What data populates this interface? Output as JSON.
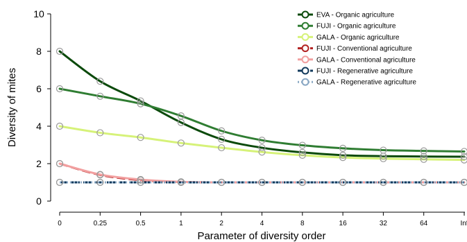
{
  "chart_data": {
    "type": "line",
    "title": "",
    "xlabel": "Parameter of diversity order",
    "ylabel": "Diversity of mites",
    "x": [
      "0",
      "0.25",
      "0.5",
      "1",
      "2",
      "4",
      "8",
      "16",
      "32",
      "64",
      "Inf"
    ],
    "ylim": [
      0,
      10
    ],
    "yticks": [
      "0",
      "2",
      "4",
      "6",
      "8",
      "10"
    ],
    "grid": false,
    "legend_position": "top-right",
    "series": [
      {
        "name": "EVA - Organic agriculture",
        "color": "#0b4a0b",
        "dash": "solid",
        "values": [
          8.0,
          6.4,
          5.35,
          4.2,
          3.3,
          2.85,
          2.6,
          2.45,
          2.4,
          2.38,
          2.37
        ]
      },
      {
        "name": "FUJI - Organic agriculture",
        "color": "#2f7d32",
        "dash": "solid",
        "values": [
          6.0,
          5.6,
          5.2,
          4.55,
          3.75,
          3.25,
          2.98,
          2.82,
          2.72,
          2.68,
          2.65
        ]
      },
      {
        "name": "GALA - Organic agriculture",
        "color": "#d6f279",
        "dash": "solid",
        "values": [
          4.0,
          3.65,
          3.4,
          3.1,
          2.85,
          2.62,
          2.45,
          2.33,
          2.27,
          2.23,
          2.2
        ]
      },
      {
        "name": "FUJI - Conventional agriculture",
        "color": "#b22222",
        "dash": "dashed",
        "values": [
          2.0,
          1.4,
          1.12,
          1.02,
          1.0,
          1.0,
          1.0,
          1.0,
          1.0,
          1.0,
          1.0
        ]
      },
      {
        "name": "GALA - Conventional agriculture",
        "color": "#f2a0a0",
        "dash": "solid",
        "values": [
          2.0,
          1.42,
          1.15,
          1.03,
          1.0,
          1.0,
          1.0,
          1.0,
          1.0,
          1.0,
          1.0
        ]
      },
      {
        "name": "FUJI - Regenerative agriculture",
        "color": "#123a5c",
        "dash": "dashed",
        "values": [
          1.0,
          1.0,
          1.0,
          1.0,
          1.0,
          1.0,
          1.0,
          1.0,
          1.0,
          1.0,
          1.0
        ]
      },
      {
        "name": "GALA - Regenerative agriculture",
        "color": "#8aa8c4",
        "dash": "dotted",
        "values": [
          1.0,
          1.0,
          1.0,
          1.0,
          1.0,
          1.0,
          1.0,
          1.0,
          1.0,
          1.0,
          1.0
        ]
      }
    ]
  }
}
